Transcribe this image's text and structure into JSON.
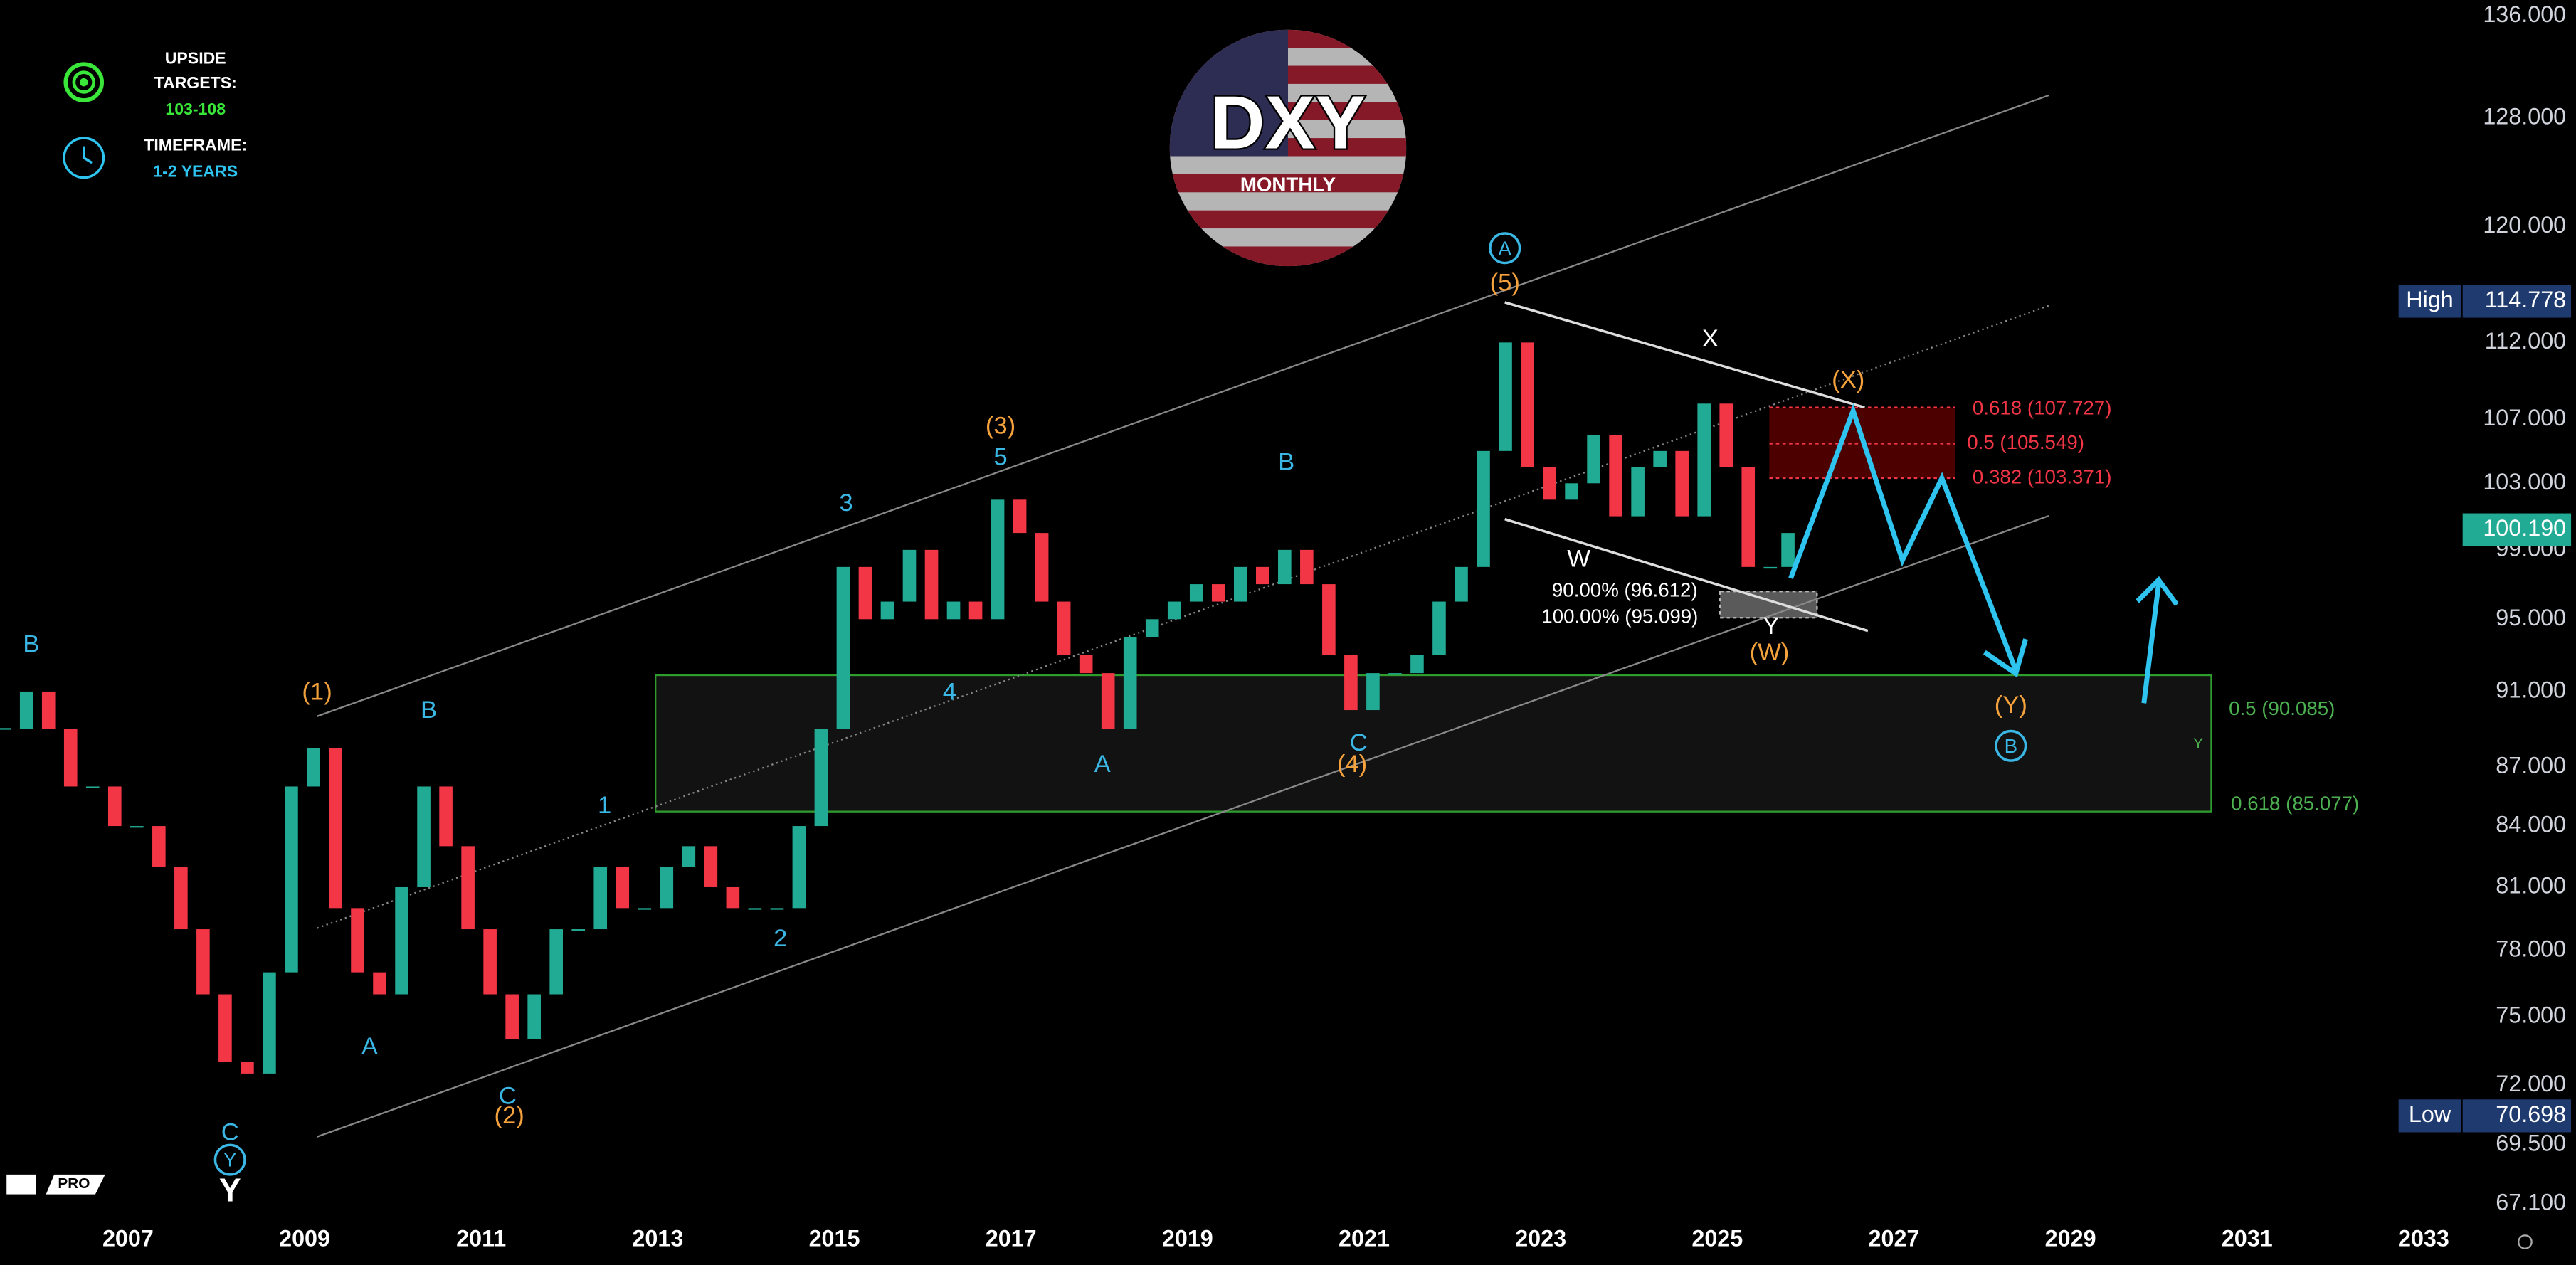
{
  "chart_data": {
    "type": "candlestick",
    "title": "DXY",
    "subtitle": "MONTHLY",
    "log_scale": true,
    "xlim": [
      2005.55,
      2033.46
    ],
    "xticks": [
      2007,
      2009,
      2011,
      2013,
      2015,
      2017,
      2019,
      2021,
      2023,
      2025,
      2027,
      2029,
      2031,
      2033
    ],
    "ylim": [
      66.3,
      137.3
    ],
    "yticks": [
      {
        "value": 67.1,
        "label": "67.100"
      },
      {
        "value": 69.5,
        "label": "69.500"
      },
      {
        "value": 72,
        "label": "72.000"
      },
      {
        "value": 75,
        "label": "75.000"
      },
      {
        "value": 78,
        "label": "78.000"
      },
      {
        "value": 81,
        "label": "81.000"
      },
      {
        "value": 84,
        "label": "84.000"
      },
      {
        "value": 87,
        "label": "87.000"
      },
      {
        "value": 91,
        "label": "91.000"
      },
      {
        "value": 95,
        "label": "95.000"
      },
      {
        "value": 99,
        "label": "99.000"
      },
      {
        "value": 103,
        "label": "103.000"
      },
      {
        "value": 107,
        "label": "107.000"
      },
      {
        "value": 112,
        "label": "112.000"
      },
      {
        "value": 120,
        "label": "120.000"
      },
      {
        "value": 128,
        "label": "128.000"
      },
      {
        "value": 136,
        "label": "136.000"
      }
    ],
    "x": [
      2005.6,
      2005.85,
      2006.1,
      2006.35,
      2006.6,
      2006.85,
      2007.1,
      2007.35,
      2007.6,
      2007.85,
      2008.1,
      2008.35,
      2008.6,
      2008.85,
      2009.1,
      2009.35,
      2009.6,
      2009.85,
      2010.1,
      2010.35,
      2010.6,
      2010.85,
      2011.1,
      2011.35,
      2011.6,
      2011.85,
      2012.1,
      2012.35,
      2012.6,
      2012.85,
      2013.1,
      2013.35,
      2013.6,
      2013.85,
      2014.1,
      2014.35,
      2014.6,
      2014.85,
      2015.1,
      2015.35,
      2015.6,
      2015.85,
      2016.1,
      2016.35,
      2016.6,
      2016.85,
      2017.1,
      2017.35,
      2017.6,
      2017.85,
      2018.1,
      2018.35,
      2018.6,
      2018.85,
      2019.1,
      2019.35,
      2019.6,
      2019.85,
      2020.1,
      2020.35,
      2020.6,
      2020.85,
      2021.1,
      2021.35,
      2021.6,
      2021.85,
      2022.1,
      2022.35,
      2022.6,
      2022.85,
      2023.1,
      2023.35,
      2023.6,
      2023.85,
      2024.1,
      2024.35,
      2024.6,
      2024.85,
      2025.1,
      2025.35,
      2025.6,
      2025.8
    ],
    "series": [
      {
        "color_up": "#22ab94",
        "color_down": "#f23645",
        "close": [
          89,
          91,
          89,
          86,
          86,
          84,
          84,
          82,
          79,
          76,
          73,
          72.5,
          77,
          86,
          88,
          80,
          77,
          76,
          81,
          86,
          83,
          79,
          76,
          74,
          76,
          79,
          79,
          82,
          80,
          80,
          82,
          83,
          81,
          80,
          80,
          80,
          84,
          89,
          98,
          95,
          96,
          99,
          95,
          96,
          95,
          102,
          100,
          96,
          93,
          92,
          89,
          94,
          95,
          96,
          97,
          96,
          98,
          97,
          99,
          97,
          93,
          90,
          92,
          92,
          93,
          96,
          98,
          105,
          112,
          104,
          102,
          103,
          106,
          101,
          104,
          105,
          101,
          108,
          104,
          98,
          98,
          100
        ]
      }
    ],
    "price_tags": [
      {
        "label": "High",
        "value": 114.778,
        "value_label": "114.778",
        "color": "#1e3a6e"
      },
      {
        "value": 100.19,
        "value_label": "100.190",
        "color": "#22ab94"
      },
      {
        "label": "Low",
        "value": 70.698,
        "value_label": "70.698",
        "color": "#1e3a6e"
      }
    ],
    "info": {
      "upside_heading": "UPSIDE",
      "targets_heading": "TARGETS:",
      "targets": "103-108",
      "timeframe_heading": "TIMEFRAME:",
      "timeframe": "1-2 YEARS"
    },
    "watermark": "PRO",
    "annotations": [
      "B",
      "B",
      "A",
      "C",
      "1",
      "2",
      "3",
      "4",
      "5",
      "A",
      "B",
      "C",
      "(1)",
      "(2)",
      "(3)",
      "(4)",
      "(5)",
      "(W)",
      "(X)",
      "(Y)",
      "X",
      "W",
      "Y",
      "Y",
      "C",
      "A",
      "Y",
      "B",
      "90.00% (96.612)",
      "100.00% (95.099)",
      "0.618 (107.727)",
      "0.5 (105.549)",
      "0.382 (103.371)",
      "0.5 (90.085)",
      "0.618 (85.077)",
      "Y"
    ]
  }
}
